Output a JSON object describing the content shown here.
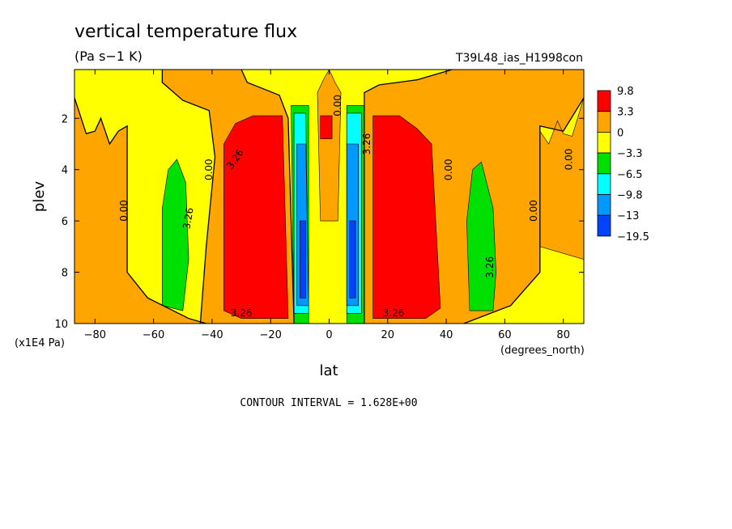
{
  "chart_data": {
    "type": "heatmap",
    "title": "vertical temperature flux",
    "units": "(Pa s−1 K)",
    "dataset_label": "T39L48_ias_H1998con",
    "xlabel": "lat",
    "x_units": "(degrees_north)",
    "ylabel": "plev",
    "y_units": "(x1E4 Pa)",
    "xlim": [
      -87,
      87
    ],
    "ylim": [
      10,
      0.1
    ],
    "x_ticks": [
      "−80",
      "−60",
      "−40",
      "−20",
      "0",
      "20",
      "40",
      "60",
      "80"
    ],
    "x_tick_values": [
      -80,
      -60,
      -40,
      -20,
      0,
      20,
      40,
      60,
      80
    ],
    "y_ticks": [
      "2",
      "4",
      "6",
      "8",
      "10"
    ],
    "y_tick_values": [
      2,
      4,
      6,
      8,
      10
    ],
    "contour_interval": "CONTOUR INTERVAL = 1.628E+00",
    "colorbar": {
      "labels": [
        "9.8",
        "3.3",
        "0",
        "−3.3",
        "−6.5",
        "−9.8",
        "−13",
        "−19.5"
      ],
      "colors": [
        "#ff0000",
        "#ffa500",
        "#ffff00",
        "#00e000",
        "#00ffff",
        "#0099ff",
        "#0044ff"
      ]
    },
    "contour_labels": [
      {
        "text": "0.00",
        "x": -70,
        "y": 5.6,
        "rot": -90
      },
      {
        "text": "0.00",
        "x": -41,
        "y": 4.0,
        "rot": -90
      },
      {
        "text": "3.26",
        "x": -48,
        "y": 5.9,
        "rot": -80
      },
      {
        "text": "3.26",
        "x": -32,
        "y": 3.6,
        "rot": -55
      },
      {
        "text": "3.26",
        "x": -30,
        "y": 9.6,
        "rot": 0
      },
      {
        "text": "0.00",
        "x": 41,
        "y": 4.0,
        "rot": -90
      },
      {
        "text": "0.00",
        "x": 70,
        "y": 5.6,
        "rot": -90
      },
      {
        "text": "0.00",
        "x": 82,
        "y": 3.6,
        "rot": -90
      },
      {
        "text": "3.26",
        "x": 55,
        "y": 7.8,
        "rot": -90
      },
      {
        "text": "3.26",
        "x": 22,
        "y": 9.6,
        "rot": 0
      },
      {
        "text": "0.00",
        "x": 3,
        "y": 1.5,
        "rot": -90
      },
      {
        "text": "3.26",
        "x": 13,
        "y": 3.0,
        "rot": -90
      }
    ],
    "fields": [
      {
        "name": "orange-band",
        "level": "0 to 3.3",
        "color": "#ffa500",
        "regions": [
          [
            [
              -87,
              1.2
            ],
            [
              -83,
              2.6
            ],
            [
              -80,
              2.5
            ],
            [
              -78,
              2.0
            ],
            [
              -75,
              3.0
            ],
            [
              -72,
              2.5
            ],
            [
              -69,
              2.3
            ],
            [
              -69,
              8.0
            ],
            [
              -62,
              9.0
            ],
            [
              -48,
              9.8
            ],
            [
              -42,
              10
            ],
            [
              -87,
              10
            ]
          ],
          [
            [
              -57,
              0.1
            ],
            [
              -30,
              0.1
            ],
            [
              -28,
              0.6
            ],
            [
              -17,
              1.1
            ],
            [
              -14,
              2.0
            ],
            [
              -12,
              10
            ],
            [
              -44,
              10
            ],
            [
              -42,
              7.0
            ],
            [
              -39,
              3.5
            ],
            [
              -41,
              1.7
            ],
            [
              -50,
              1.3
            ],
            [
              -57,
              0.6
            ]
          ],
          [
            [
              -4,
              1.0
            ],
            [
              -2,
              0.5
            ],
            [
              0,
              0.1
            ],
            [
              2,
              0.6
            ],
            [
              4,
              1.0
            ],
            [
              3,
              6.0
            ],
            [
              -3,
              6.0
            ]
          ],
          [
            [
              12,
              1.0
            ],
            [
              17,
              0.7
            ],
            [
              30,
              0.5
            ],
            [
              42,
              0.1
            ],
            [
              87,
              0.1
            ],
            [
              87,
              1.2
            ],
            [
              80,
              2.5
            ],
            [
              72,
              2.3
            ],
            [
              72,
              8.0
            ],
            [
              62,
              9.3
            ],
            [
              46,
              10
            ],
            [
              12,
              10
            ]
          ],
          [
            [
              87,
              1.2
            ],
            [
              83,
              2.7
            ],
            [
              80,
              2.6
            ],
            [
              78,
              2.1
            ],
            [
              75,
              3.0
            ],
            [
              72,
              2.5
            ],
            [
              72,
              7.0
            ],
            [
              87,
              7.5
            ]
          ]
        ]
      },
      {
        "name": "red-core",
        "level": "3.3 to 9.8",
        "color": "#ff0000",
        "regions": [
          [
            [
              -36,
              3.0
            ],
            [
              -32,
              2.2
            ],
            [
              -26,
              1.9
            ],
            [
              -16,
              1.9
            ],
            [
              -14,
              9.8
            ],
            [
              -30,
              9.8
            ],
            [
              -36,
              9.5
            ]
          ],
          [
            [
              -3,
              1.9
            ],
            [
              1,
              1.9
            ],
            [
              1,
              2.8
            ],
            [
              -3,
              2.8
            ]
          ],
          [
            [
              15,
              1.9
            ],
            [
              24,
              1.9
            ],
            [
              30,
              2.4
            ],
            [
              35,
              3.0
            ],
            [
              38,
              9.4
            ],
            [
              33,
              9.8
            ],
            [
              15,
              9.8
            ]
          ]
        ]
      },
      {
        "name": "green-cell",
        "level": "-6.5 to -3.3",
        "color": "#00e000",
        "regions": [
          [
            [
              -57,
              9.3
            ],
            [
              -57,
              5.5
            ],
            [
              -55,
              4.0
            ],
            [
              -52,
              3.6
            ],
            [
              -49,
              4.5
            ],
            [
              -48,
              7.5
            ],
            [
              -50,
              9.5
            ]
          ],
          [
            [
              48,
              9.5
            ],
            [
              47,
              6.0
            ],
            [
              49,
              4.0
            ],
            [
              52,
              3.7
            ],
            [
              56,
              5.5
            ],
            [
              57,
              8.0
            ],
            [
              56,
              9.5
            ]
          ],
          [
            [
              -12,
              10
            ],
            [
              -13,
              1.5
            ],
            [
              -7,
              1.5
            ],
            [
              -7,
              10
            ]
          ],
          [
            [
              6,
              10
            ],
            [
              6,
              1.5
            ],
            [
              12,
              1.5
            ],
            [
              12,
              10
            ]
          ]
        ]
      },
      {
        "name": "cyan-jet",
        "level": "-9.8 to -6.5",
        "color": "#00ffff",
        "regions": [
          [
            [
              -12,
              9.6
            ],
            [
              -12,
              1.8
            ],
            [
              -8,
              1.8
            ],
            [
              -7,
              9.6
            ]
          ],
          [
            [
              6,
              9.6
            ],
            [
              6,
              1.8
            ],
            [
              11,
              1.8
            ],
            [
              11,
              9.6
            ]
          ]
        ]
      },
      {
        "name": "blue-jet",
        "level": "-13 to -9.8",
        "color": "#0099ff",
        "regions": [
          [
            [
              -11,
              9.3
            ],
            [
              -11,
              3.0
            ],
            [
              -8,
              3.0
            ],
            [
              -7,
              9.3
            ]
          ],
          [
            [
              6,
              9.3
            ],
            [
              6,
              3.0
            ],
            [
              10,
              3.0
            ],
            [
              10,
              9.3
            ]
          ]
        ]
      },
      {
        "name": "deep-blue-jet",
        "level": "-19.5 to -13",
        "color": "#0044ff",
        "regions": [
          [
            [
              -10,
              9.0
            ],
            [
              -10,
              6.0
            ],
            [
              -8,
              6.0
            ],
            [
              -8,
              9.0
            ]
          ],
          [
            [
              7,
              9.0
            ],
            [
              7,
              6.0
            ],
            [
              9,
              6.0
            ],
            [
              9,
              9.0
            ]
          ]
        ]
      }
    ],
    "zero_contours": [
      [
        [
          -87,
          1.2
        ],
        [
          -83,
          2.6
        ],
        [
          -80,
          2.5
        ],
        [
          -78,
          2.0
        ],
        [
          -75,
          3.0
        ],
        [
          -72,
          2.5
        ],
        [
          -69,
          2.3
        ],
        [
          -69,
          8.0
        ],
        [
          -62,
          9.0
        ],
        [
          -48,
          9.8
        ],
        [
          -42,
          10
        ]
      ],
      [
        [
          -44,
          10
        ],
        [
          -42,
          7.0
        ],
        [
          -39,
          3.5
        ],
        [
          -41,
          1.7
        ],
        [
          -50,
          1.3
        ],
        [
          -57,
          0.6
        ],
        [
          -57,
          0.1
        ]
      ],
      [
        [
          -30,
          0.1
        ],
        [
          -28,
          0.6
        ],
        [
          -17,
          1.1
        ],
        [
          -14,
          2.0
        ],
        [
          -12,
          10
        ]
      ],
      [
        [
          12,
          10
        ],
        [
          12,
          1.0
        ],
        [
          17,
          0.7
        ],
        [
          30,
          0.5
        ],
        [
          42,
          0.1
        ]
      ],
      [
        [
          46,
          10
        ],
        [
          62,
          9.3
        ],
        [
          72,
          8.0
        ],
        [
          72,
          2.3
        ],
        [
          80,
          2.5
        ],
        [
          87,
          1.2
        ]
      ]
    ]
  }
}
